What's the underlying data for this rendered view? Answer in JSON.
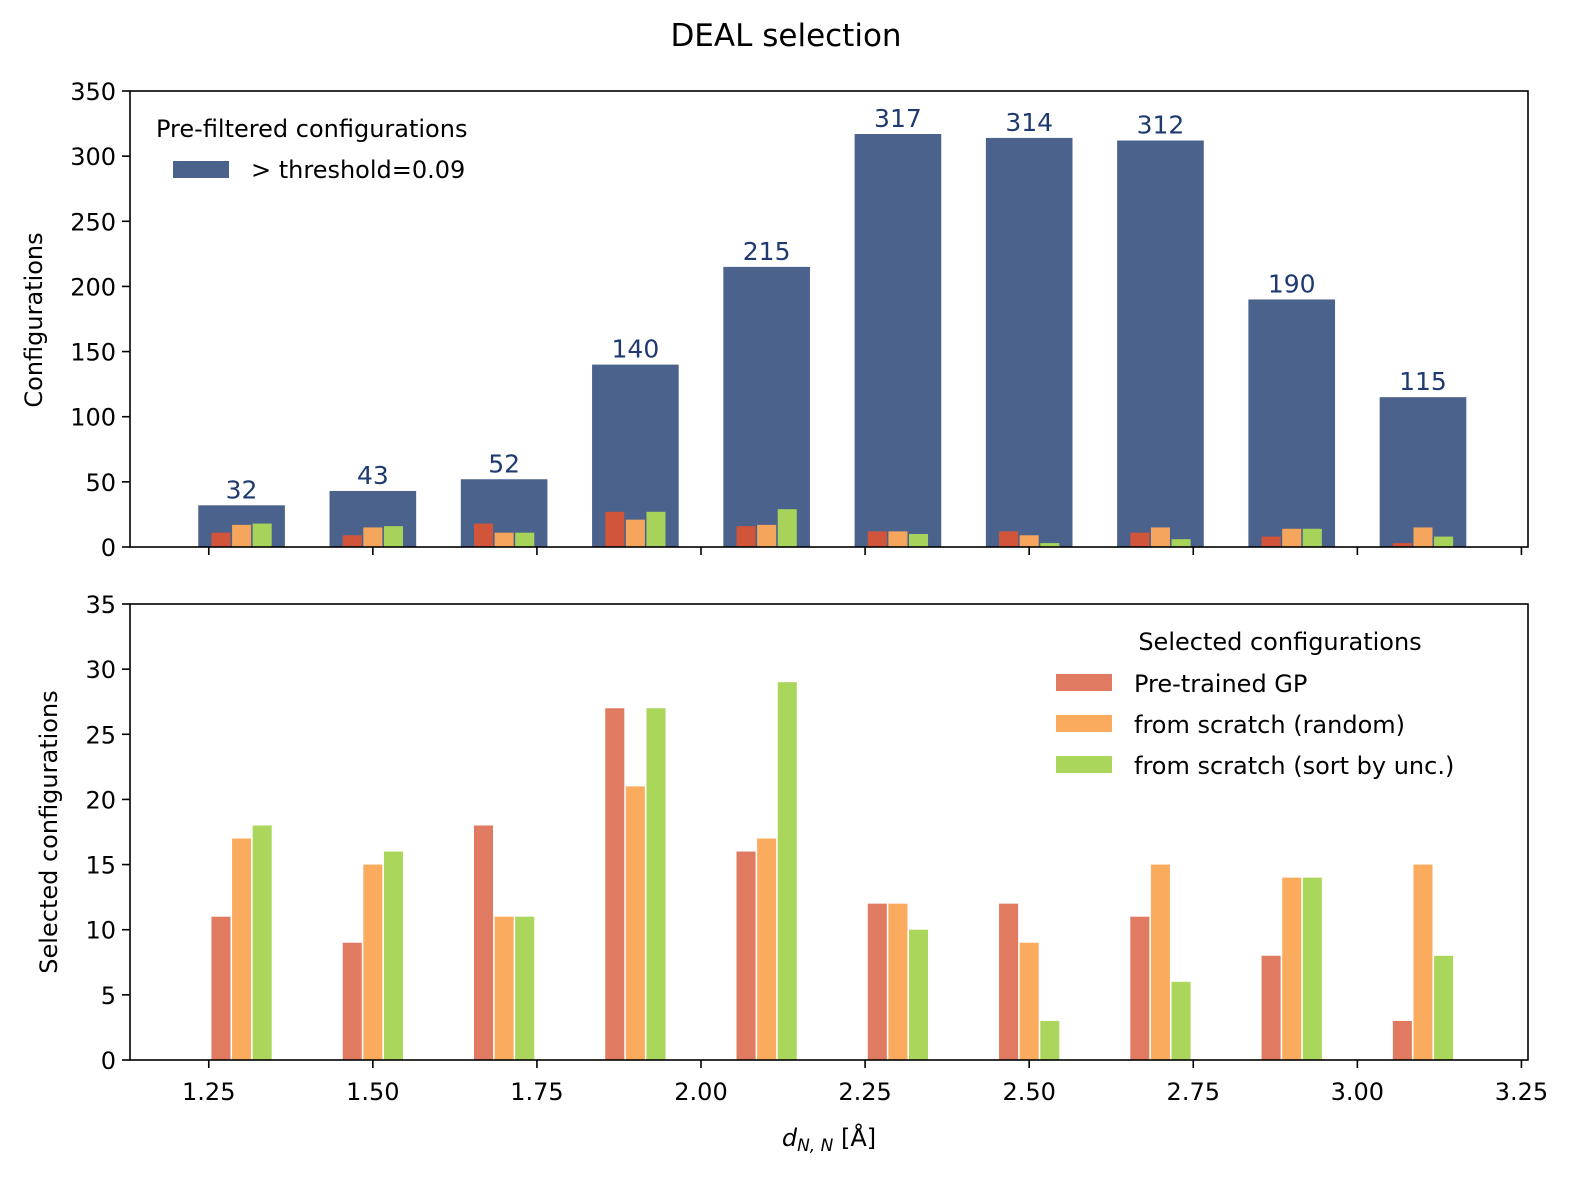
{
  "figure": {
    "title": "DEAL selection"
  },
  "chart_data": [
    {
      "type": "bar",
      "ylabel": "Configurations",
      "ylim": [
        0,
        350
      ],
      "yticks": [
        0,
        50,
        100,
        150,
        200,
        250,
        300,
        350
      ],
      "xticks": [
        1.25,
        1.5,
        1.75,
        2.0,
        2.25,
        2.5,
        2.75,
        3.0,
        3.25
      ],
      "xlim": [
        1.13,
        3.26
      ],
      "bin_centers": [
        1.3,
        1.5,
        1.7,
        1.9,
        2.1,
        2.3,
        2.5,
        2.7,
        2.9,
        3.1
      ],
      "legend": {
        "title": "Pre-filtered configurations",
        "placement": "top-left"
      },
      "main_series": {
        "name": "> threshold=0.09",
        "color": "#4b628c",
        "values": [
          32,
          43,
          52,
          140,
          215,
          317,
          314,
          312,
          190,
          115
        ],
        "labels": [
          "32",
          "43",
          "52",
          "140",
          "215",
          "317",
          "314",
          "312",
          "190",
          "115"
        ],
        "label_color": "#1f3a70"
      },
      "inset_series": [
        {
          "color": "#d1553a",
          "values": [
            11,
            9,
            18,
            27,
            16,
            12,
            12,
            11,
            8,
            3
          ]
        },
        {
          "color": "#f5a55c",
          "values": [
            17,
            15,
            11,
            21,
            17,
            12,
            9,
            15,
            14,
            15
          ]
        },
        {
          "color": "#a8d35a",
          "values": [
            18,
            16,
            11,
            27,
            29,
            10,
            3,
            6,
            14,
            8
          ]
        }
      ]
    },
    {
      "type": "bar",
      "ylabel": "Selected configurations",
      "xlabel_main": "d",
      "xlabel_sub": "N, N",
      "xlabel_unit": " [Å]",
      "ylim": [
        0,
        35
      ],
      "yticks": [
        0,
        5,
        10,
        15,
        20,
        25,
        30,
        35
      ],
      "xticks": [
        1.25,
        1.5,
        1.75,
        2.0,
        2.25,
        2.5,
        2.75,
        3.0,
        3.25
      ],
      "xtick_labels": [
        "1.25",
        "1.50",
        "1.75",
        "2.00",
        "2.25",
        "2.50",
        "2.75",
        "3.00",
        "3.25"
      ],
      "xlim": [
        1.13,
        3.26
      ],
      "bin_centers": [
        1.3,
        1.5,
        1.7,
        1.9,
        2.1,
        2.3,
        2.5,
        2.7,
        2.9,
        3.1
      ],
      "legend": {
        "title": "Selected configurations",
        "placement": "top-right"
      },
      "series": [
        {
          "name": "Pre-trained GP",
          "color": "#e07a60",
          "values": [
            11,
            9,
            18,
            27,
            16,
            12,
            12,
            11,
            8,
            3
          ]
        },
        {
          "name": "from scratch (random)",
          "color": "#fbab5e",
          "values": [
            17,
            15,
            11,
            21,
            17,
            12,
            9,
            15,
            14,
            15
          ]
        },
        {
          "name": "from scratch (sort by unc.)",
          "color": "#aad65c",
          "values": [
            18,
            16,
            11,
            27,
            29,
            10,
            3,
            6,
            14,
            8
          ]
        }
      ]
    }
  ]
}
